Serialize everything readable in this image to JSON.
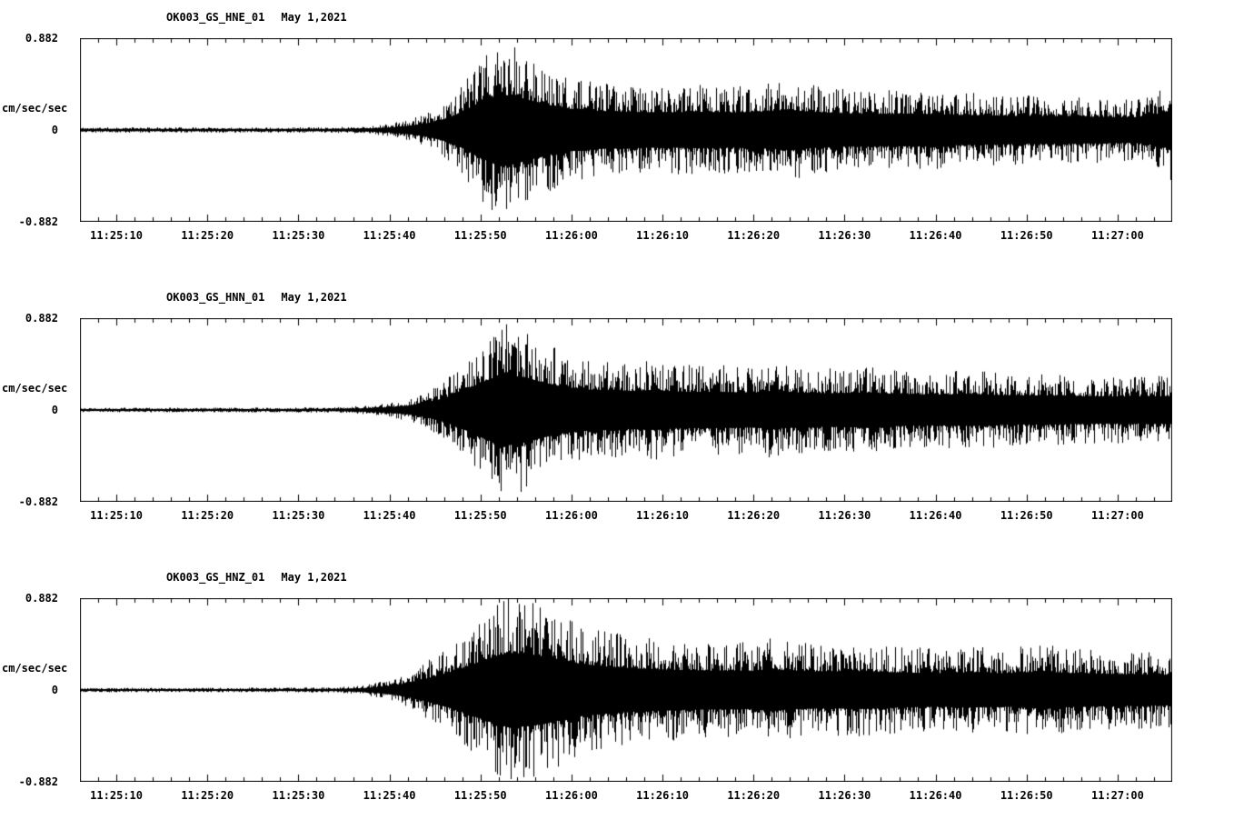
{
  "chart_data": [
    {
      "type": "line",
      "station_channel": "OK003_GS_HNE_01",
      "date": "May 1,2021",
      "ylabel": "cm/sec/sec",
      "ylim": [
        -0.882,
        0.882
      ],
      "y_tick_labels": [
        "0.882",
        "0",
        "-0.882"
      ],
      "x_start": "11:25:06",
      "x_end": "11:27:06",
      "duration_s": 120,
      "x_ticks": [
        {
          "label": "11:25:10",
          "t": 4
        },
        {
          "label": "11:25:20",
          "t": 14
        },
        {
          "label": "11:25:30",
          "t": 24
        },
        {
          "label": "11:25:40",
          "t": 34
        },
        {
          "label": "11:25:50",
          "t": 44
        },
        {
          "label": "11:26:00",
          "t": 54
        },
        {
          "label": "11:26:10",
          "t": 64
        },
        {
          "label": "11:26:20",
          "t": 74
        },
        {
          "label": "11:26:30",
          "t": 84
        },
        {
          "label": "11:26:40",
          "t": 94
        },
        {
          "label": "11:26:50",
          "t": 104
        },
        {
          "label": "11:27:00",
          "t": 114
        }
      ],
      "seed": 11,
      "envelope": [
        [
          0,
          0.03
        ],
        [
          20,
          0.03
        ],
        [
          28,
          0.032
        ],
        [
          32,
          0.045
        ],
        [
          34,
          0.07
        ],
        [
          36,
          0.11
        ],
        [
          38,
          0.18
        ],
        [
          40,
          0.3
        ],
        [
          42,
          0.5
        ],
        [
          44,
          0.78
        ],
        [
          46,
          0.97
        ],
        [
          48,
          0.9
        ],
        [
          50,
          0.78
        ],
        [
          52,
          0.66
        ],
        [
          54,
          0.58
        ],
        [
          57,
          0.52
        ],
        [
          60,
          0.5
        ],
        [
          64,
          0.48
        ],
        [
          68,
          0.5
        ],
        [
          72,
          0.48
        ],
        [
          76,
          0.52
        ],
        [
          78,
          0.56
        ],
        [
          80,
          0.5
        ],
        [
          84,
          0.46
        ],
        [
          88,
          0.44
        ],
        [
          92,
          0.45
        ],
        [
          96,
          0.42
        ],
        [
          100,
          0.4
        ],
        [
          104,
          0.38
        ],
        [
          108,
          0.38
        ],
        [
          112,
          0.36
        ],
        [
          116,
          0.35
        ],
        [
          119,
          0.45
        ],
        [
          120,
          0.6
        ]
      ]
    },
    {
      "type": "line",
      "station_channel": "OK003_GS_HNN_01",
      "date": "May 1,2021",
      "ylabel": "cm/sec/sec",
      "ylim": [
        -0.882,
        0.882
      ],
      "y_tick_labels": [
        "0.882",
        "0",
        "-0.882"
      ],
      "x_start": "11:25:06",
      "x_end": "11:27:06",
      "duration_s": 120,
      "x_ticks": [
        {
          "label": "11:25:10",
          "t": 4
        },
        {
          "label": "11:25:20",
          "t": 14
        },
        {
          "label": "11:25:30",
          "t": 24
        },
        {
          "label": "11:25:40",
          "t": 34
        },
        {
          "label": "11:25:50",
          "t": 44
        },
        {
          "label": "11:26:00",
          "t": 54
        },
        {
          "label": "11:26:10",
          "t": 64
        },
        {
          "label": "11:26:20",
          "t": 74
        },
        {
          "label": "11:26:30",
          "t": 84
        },
        {
          "label": "11:26:40",
          "t": 94
        },
        {
          "label": "11:26:50",
          "t": 104
        },
        {
          "label": "11:27:00",
          "t": 114
        }
      ],
      "seed": 22,
      "envelope": [
        [
          0,
          0.026
        ],
        [
          20,
          0.027
        ],
        [
          28,
          0.03
        ],
        [
          32,
          0.05
        ],
        [
          34,
          0.08
        ],
        [
          36,
          0.12
        ],
        [
          38,
          0.2
        ],
        [
          40,
          0.33
        ],
        [
          42,
          0.52
        ],
        [
          44,
          0.75
        ],
        [
          46,
          0.95
        ],
        [
          47,
          0.97
        ],
        [
          49,
          0.88
        ],
        [
          51,
          0.75
        ],
        [
          53,
          0.64
        ],
        [
          56,
          0.56
        ],
        [
          60,
          0.52
        ],
        [
          63,
          0.55
        ],
        [
          66,
          0.5
        ],
        [
          70,
          0.5
        ],
        [
          74,
          0.48
        ],
        [
          76,
          0.53
        ],
        [
          78,
          0.49
        ],
        [
          82,
          0.46
        ],
        [
          86,
          0.48
        ],
        [
          90,
          0.44
        ],
        [
          94,
          0.42
        ],
        [
          98,
          0.44
        ],
        [
          102,
          0.4
        ],
        [
          106,
          0.4
        ],
        [
          110,
          0.38
        ],
        [
          114,
          0.37
        ],
        [
          120,
          0.38
        ]
      ]
    },
    {
      "type": "line",
      "station_channel": "OK003_GS_HNZ_01",
      "date": "May 1,2021",
      "ylabel": "cm/sec/sec",
      "ylim": [
        -0.882,
        0.882
      ],
      "y_tick_labels": [
        "0.882",
        "0",
        "-0.882"
      ],
      "x_start": "11:25:06",
      "x_end": "11:27:06",
      "duration_s": 120,
      "x_ticks": [
        {
          "label": "11:25:10",
          "t": 4
        },
        {
          "label": "11:25:20",
          "t": 14
        },
        {
          "label": "11:25:30",
          "t": 24
        },
        {
          "label": "11:25:40",
          "t": 34
        },
        {
          "label": "11:25:50",
          "t": 44
        },
        {
          "label": "11:26:00",
          "t": 54
        },
        {
          "label": "11:26:10",
          "t": 64
        },
        {
          "label": "11:26:20",
          "t": 74
        },
        {
          "label": "11:26:30",
          "t": 84
        },
        {
          "label": "11:26:40",
          "t": 94
        },
        {
          "label": "11:26:50",
          "t": 104
        },
        {
          "label": "11:27:00",
          "t": 114
        }
      ],
      "seed": 33,
      "envelope": [
        [
          0,
          0.024
        ],
        [
          20,
          0.025
        ],
        [
          28,
          0.03
        ],
        [
          31,
          0.05
        ],
        [
          33,
          0.09
        ],
        [
          35,
          0.15
        ],
        [
          37,
          0.25
        ],
        [
          39,
          0.38
        ],
        [
          41,
          0.52
        ],
        [
          43,
          0.7
        ],
        [
          45,
          0.88
        ],
        [
          47,
          1.02
        ],
        [
          49,
          1.0
        ],
        [
          51,
          0.92
        ],
        [
          53,
          0.82
        ],
        [
          55,
          0.72
        ],
        [
          58,
          0.64
        ],
        [
          62,
          0.58
        ],
        [
          66,
          0.55
        ],
        [
          70,
          0.53
        ],
        [
          74,
          0.53
        ],
        [
          76,
          0.58
        ],
        [
          78,
          0.53
        ],
        [
          82,
          0.5
        ],
        [
          86,
          0.52
        ],
        [
          90,
          0.48
        ],
        [
          94,
          0.46
        ],
        [
          98,
          0.48
        ],
        [
          102,
          0.46
        ],
        [
          106,
          0.52
        ],
        [
          108,
          0.47
        ],
        [
          112,
          0.45
        ],
        [
          116,
          0.43
        ],
        [
          120,
          0.42
        ]
      ]
    }
  ]
}
